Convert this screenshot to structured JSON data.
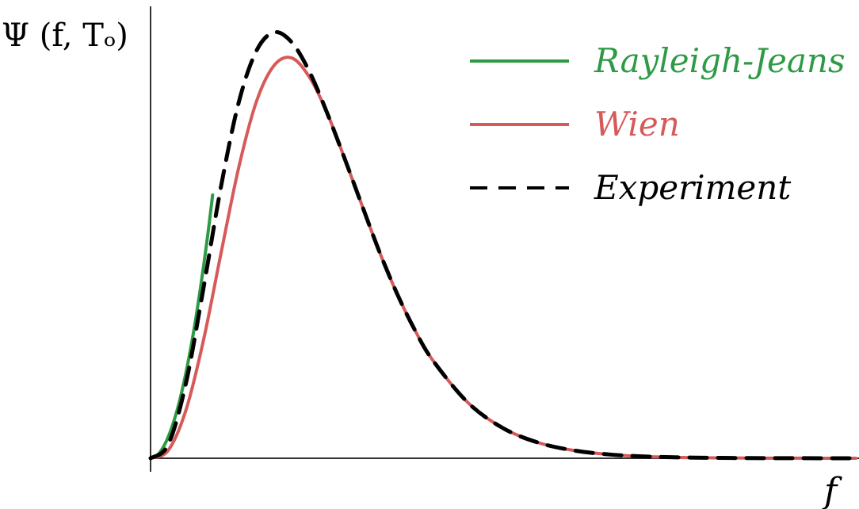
{
  "chart_data": {
    "type": "line",
    "title": "",
    "xlabel": "f",
    "ylabel": "Ψ (f, Tₒ)",
    "xlim": [
      0,
      10
    ],
    "ylim": [
      0,
      1.15
    ],
    "x_ticks": [],
    "y_ticks": [],
    "grid": false,
    "legend_position": "top-right",
    "series": [
      {
        "name": "Rayleigh-Jeans",
        "color": "#2e9a45",
        "style": "solid",
        "x": [
          0,
          0.1,
          0.2,
          0.3,
          0.4,
          0.5,
          0.6,
          0.7,
          0.8,
          0.88
        ],
        "y": [
          0,
          0.0086,
          0.0346,
          0.0778,
          0.138,
          0.216,
          0.311,
          0.424,
          0.553,
          0.67
        ]
      },
      {
        "name": "Wien",
        "color": "#d65a5a",
        "style": "solid",
        "x": [
          0,
          0.25,
          0.5,
          0.75,
          1.0,
          1.25,
          1.5,
          1.75,
          2.0,
          2.25,
          2.5,
          2.75,
          3.0,
          3.25,
          3.5,
          3.75,
          4.0,
          4.5,
          5.0,
          5.5,
          6.0,
          6.5,
          7.0,
          7.5,
          8.0,
          8.5,
          9.0,
          9.5,
          10.0
        ],
        "y": [
          0,
          0.0198,
          0.1215,
          0.3,
          0.5227,
          0.7398,
          0.9071,
          0.9992,
          1.0187,
          0.9705,
          0.8803,
          0.7636,
          0.6425,
          0.5233,
          0.4169,
          0.3254,
          0.2498,
          0.1416,
          0.0764,
          0.0396,
          0.0199,
          0.0097,
          0.0046,
          0.0021,
          0.001,
          0.0004,
          0.0002,
          0.0001,
          0.0
        ]
      },
      {
        "name": "Experiment",
        "color": "#000000",
        "style": "dashed",
        "x": [
          0,
          0.25,
          0.5,
          0.75,
          1.0,
          1.25,
          1.5,
          1.75,
          2.0,
          2.25,
          2.5,
          2.75,
          3.0,
          3.25,
          3.5,
          3.75,
          4.0,
          4.5,
          5.0,
          5.5,
          6.0,
          6.5,
          7.0,
          7.5,
          8.0,
          8.5,
          9.0,
          9.5,
          10.0
        ],
        "y": [
          0,
          0.0349,
          0.1898,
          0.4327,
          0.6925,
          0.9054,
          1.0365,
          1.0838,
          1.0588,
          0.9847,
          0.8803,
          0.7636,
          0.6425,
          0.5233,
          0.4169,
          0.3254,
          0.2498,
          0.1416,
          0.0764,
          0.0396,
          0.0199,
          0.0097,
          0.0046,
          0.0021,
          0.001,
          0.0004,
          0.0002,
          0.0001,
          0.0
        ]
      }
    ]
  }
}
